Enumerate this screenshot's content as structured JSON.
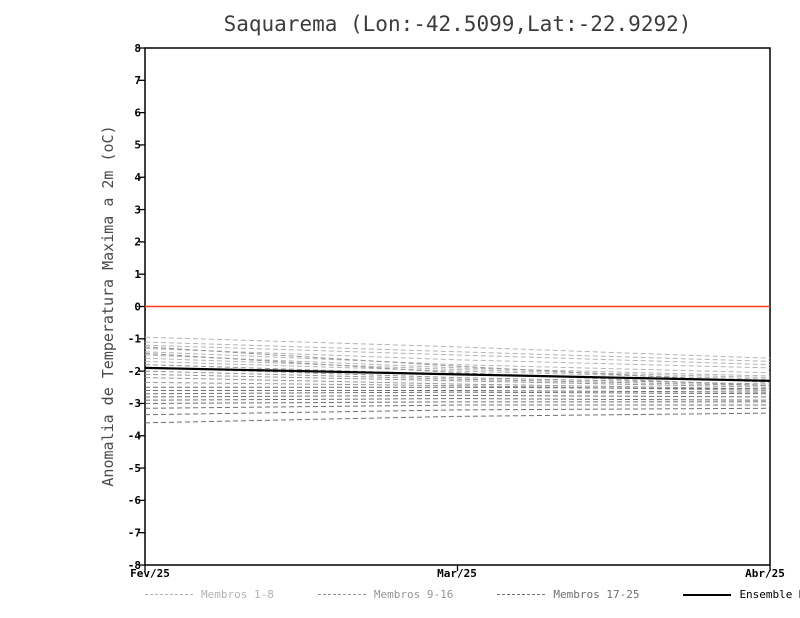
{
  "chart_data": {
    "type": "line",
    "title": "Saquarema (Lon:-42.5099,Lat:-22.9292)",
    "ylabel": "Anomalia de Temperatura Maxima a 2m (oC)",
    "x_categories": [
      "Fev/25",
      "Mar/25",
      "Abr/25"
    ],
    "ylim": [
      -8,
      8
    ],
    "y_tick_step": 1,
    "grid": false,
    "legend_position": "bottom",
    "zero_line": {
      "value": 0,
      "color": "#f93822"
    },
    "groups": [
      {
        "label": "Membros 1-8",
        "color": "#b3b3b3",
        "dash": "5 3",
        "members": [
          [
            -0.95,
            -1.25,
            -1.6
          ],
          [
            -1.1,
            -1.4,
            -1.7
          ],
          [
            -1.2,
            -1.5,
            -1.8
          ],
          [
            -1.3,
            -1.65,
            -1.9
          ],
          [
            -1.4,
            -1.8,
            -2.05
          ],
          [
            -1.5,
            -1.9,
            -2.15
          ],
          [
            -1.6,
            -1.95,
            -2.2
          ],
          [
            -1.7,
            -2.0,
            -2.25
          ]
        ]
      },
      {
        "label": "Membros 9-16",
        "color": "#959595",
        "dash": "5 3",
        "members": [
          [
            -1.25,
            -1.85,
            -2.35
          ],
          [
            -1.45,
            -2.05,
            -2.45
          ],
          [
            -1.8,
            -2.1,
            -2.3
          ],
          [
            -1.9,
            -2.2,
            -2.4
          ],
          [
            -2.0,
            -2.25,
            -2.45
          ],
          [
            -2.1,
            -2.3,
            -2.5
          ],
          [
            -2.2,
            -2.4,
            -2.55
          ],
          [
            -2.35,
            -2.45,
            -2.6
          ]
        ]
      },
      {
        "label": "Membros 17-25",
        "color": "#6f6f6f",
        "dash": "5 3",
        "members": [
          [
            -2.5,
            -2.5,
            -2.55
          ],
          [
            -2.6,
            -2.6,
            -2.65
          ],
          [
            -2.7,
            -2.65,
            -2.7
          ],
          [
            -2.8,
            -2.75,
            -2.8
          ],
          [
            -2.9,
            -2.85,
            -2.9
          ],
          [
            -3.0,
            -2.95,
            -2.95
          ],
          [
            -3.15,
            -3.05,
            -3.05
          ],
          [
            -3.35,
            -3.2,
            -3.15
          ],
          [
            -3.6,
            -3.4,
            -3.3
          ]
        ]
      }
    ],
    "mean": {
      "label": "Ensemble Mean",
      "color": "#000000",
      "values": [
        -1.9,
        -2.1,
        -2.3
      ]
    }
  }
}
